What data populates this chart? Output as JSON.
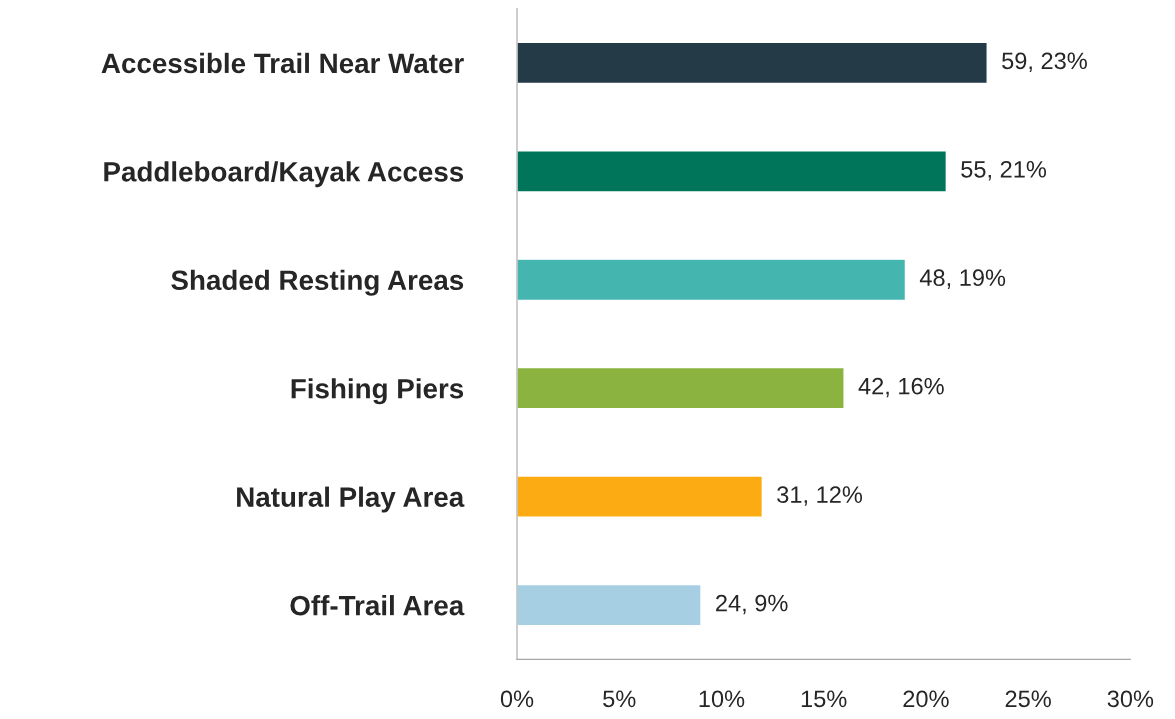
{
  "chart_data": {
    "type": "bar",
    "orientation": "horizontal",
    "categories": [
      "Accessible Trail Near Water",
      "Paddleboard/Kayak Access",
      "Shaded Resting Areas",
      "Fishing Piers",
      "Natural Play Area",
      "Off-Trail Area"
    ],
    "values": [
      23,
      21,
      19,
      16,
      12,
      9
    ],
    "value_labels": [
      "59, 23%",
      "55, 21%",
      "48, 19%",
      "42, 16%",
      "31, 12%",
      "24, 9%"
    ],
    "colors": [
      "#243a47",
      "#00755a",
      "#45b5b0",
      "#8ab43f",
      "#fcac12",
      "#a6cfe4"
    ],
    "xlim": [
      0,
      30
    ],
    "xticks": [
      {
        "value": 0,
        "label": "0%"
      },
      {
        "value": 5,
        "label": "5%"
      },
      {
        "value": 10,
        "label": "10%"
      },
      {
        "value": 15,
        "label": "15%"
      },
      {
        "value": 20,
        "label": "20%"
      },
      {
        "value": 25,
        "label": "25%"
      },
      {
        "value": 30,
        "label": "30%"
      }
    ],
    "grid": false
  }
}
